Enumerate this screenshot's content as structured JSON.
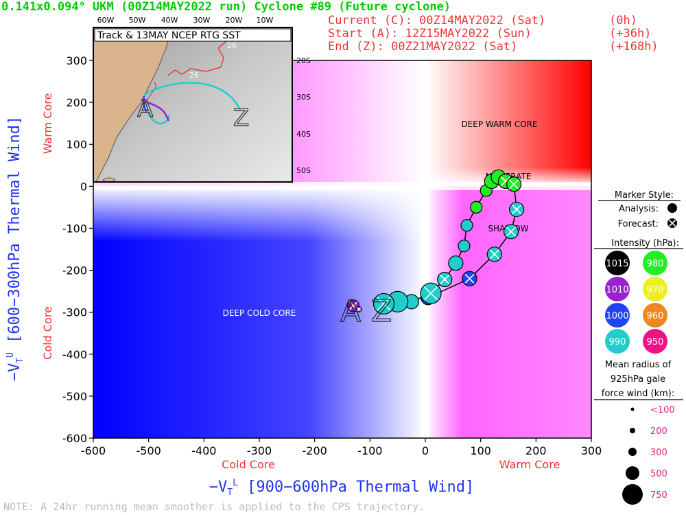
{
  "header": {
    "title": "0.141x0.094° UKM (00Z14MAY2022 run) Cyclone #89 (Future cyclone)",
    "current": "Current (C): 00Z14MAY2022 (Sat)",
    "current_hr": "(0h)",
    "start": "Start (A):   12Z15MAY2022 (Sun)",
    "start_hr": "(+36h)",
    "end": "End (Z):     00Z21MAY2022 (Sat)",
    "end_hr": "(+168h)"
  },
  "axes": {
    "xlabel": "−V",
    "xlabel_sub": "T",
    "xlabel_sup": "L",
    "xlabel_rest": " [900−600hPa Thermal Wind]",
    "ylabel": "−V",
    "ylabel_sub": "T",
    "ylabel_sup": "U",
    "ylabel_rest": " [600−300hPa Thermal Wind]",
    "x_cold": "Cold Core",
    "x_warm": "Warm Core",
    "y_warm": "Warm Core",
    "y_cold": "Cold Core"
  },
  "regions": {
    "deep_warm": "DEEP WARM CORE",
    "deep_cold": "DEEP COLD CORE",
    "moderate": "MODERATE",
    "shallow": "SHALLOW"
  },
  "markers": {
    "start": "A",
    "end": "Z"
  },
  "inset": {
    "title": "Track & 13MAY NCEP RTG SST",
    "lon_ticks": [
      "60W",
      "50W",
      "40W",
      "30W",
      "20W",
      "10W"
    ],
    "lat_ticks": [
      "20S",
      "30S",
      "40S",
      "50S"
    ],
    "sst_label_1": "26",
    "sst_label_2": "26",
    "start": "A",
    "end": "Z"
  },
  "legend": {
    "marker_style": "Marker Style:",
    "analysis": "Analysis:",
    "forecast": "Forecast:",
    "intensity": "Intensity (hPa):",
    "intensity_levels": [
      {
        "label": "1015",
        "color": "#000000",
        "text_color": "#ffffff"
      },
      {
        "label": "980",
        "color": "#22ee22",
        "text_color": "#ffffff"
      },
      {
        "label": "1010",
        "color": "#9922cc",
        "text_color": "#ffffff"
      },
      {
        "label": "970",
        "color": "#eeee22",
        "text_color": "#ffffff"
      },
      {
        "label": "1000",
        "color": "#2244ee",
        "text_color": "#ffffff"
      },
      {
        "label": "960",
        "color": "#ee8822",
        "text_color": "#ffffff"
      },
      {
        "label": "990",
        "color": "#22cccc",
        "text_color": "#ffffff"
      },
      {
        "label": "950",
        "color": "#ee1188",
        "text_color": "#ffffff"
      }
    ],
    "radius_title_1": "Mean radius of",
    "radius_title_2": "925hPa gale",
    "radius_title_3": "force wind (km):",
    "radius_sizes": [
      {
        "label": "<100",
        "r": 2.5
      },
      {
        "label": "200",
        "r": 4
      },
      {
        "label": "300",
        "r": 6
      },
      {
        "label": "500",
        "r": 10
      },
      {
        "label": "750",
        "r": 15
      }
    ]
  },
  "note": "NOTE:  A 24hr running mean smoother is applied to the CPS trajectory.",
  "chart_data": {
    "type": "scatter",
    "title": "0.141x0.094° UKM (00Z14MAY2022 run) Cyclone #89 (Future cyclone)",
    "xlabel": "−VTL [900−600hPa Thermal Wind]",
    "ylabel": "−VTU [600−300hPa Thermal Wind]",
    "xlim": [
      -600,
      300
    ],
    "ylim": [
      -600,
      300
    ],
    "xticks": [
      -600,
      -500,
      -400,
      -300,
      -200,
      -100,
      0,
      100,
      200,
      300
    ],
    "yticks": [
      -600,
      -500,
      -400,
      -300,
      -200,
      -100,
      0,
      100,
      200,
      300
    ],
    "grid": false,
    "legend_position": "right",
    "trajectory": [
      {
        "x": -130,
        "y": -285,
        "hpa": 1010,
        "size": 200,
        "type": "forecast"
      },
      {
        "x": -120,
        "y": -293,
        "hpa": 1010,
        "size": 100,
        "type": "forecast"
      },
      {
        "x": 5,
        "y": -265,
        "hpa": 1000,
        "size": 300,
        "type": "analysis"
      },
      {
        "x": 10,
        "y": -255,
        "hpa": 990,
        "size": 500,
        "type": "forecast"
      },
      {
        "x": 35,
        "y": -222,
        "hpa": 990,
        "size": 300,
        "type": "forecast"
      },
      {
        "x": 80,
        "y": -220,
        "hpa": 1000,
        "size": 300,
        "type": "forecast"
      },
      {
        "x": 55,
        "y": -183,
        "hpa": 990,
        "size": 300,
        "type": "analysis"
      },
      {
        "x": 70,
        "y": -142,
        "hpa": 990,
        "size": 200,
        "type": "analysis"
      },
      {
        "x": 125,
        "y": -162,
        "hpa": 990,
        "size": 300,
        "type": "forecast"
      },
      {
        "x": 155,
        "y": -108,
        "hpa": 990,
        "size": 300,
        "type": "forecast"
      },
      {
        "x": 75,
        "y": -93,
        "hpa": 990,
        "size": 200,
        "type": "analysis"
      },
      {
        "x": 165,
        "y": -55,
        "hpa": 990,
        "size": 300,
        "type": "forecast"
      },
      {
        "x": 92,
        "y": -50,
        "hpa": 980,
        "size": 200,
        "type": "analysis"
      },
      {
        "x": 110,
        "y": -10,
        "hpa": 980,
        "size": 200,
        "type": "analysis"
      },
      {
        "x": 120,
        "y": 12,
        "hpa": 980,
        "size": 300,
        "type": "analysis"
      },
      {
        "x": 132,
        "y": 22,
        "hpa": 980,
        "size": 300,
        "type": "analysis"
      },
      {
        "x": 145,
        "y": 12,
        "hpa": 980,
        "size": 300,
        "type": "forecast"
      },
      {
        "x": 160,
        "y": 5,
        "hpa": 980,
        "size": 300,
        "type": "forecast"
      },
      {
        "x": -25,
        "y": -275,
        "hpa": 990,
        "size": 300,
        "type": "analysis"
      },
      {
        "x": -50,
        "y": -275,
        "hpa": 990,
        "size": 500,
        "type": "analysis"
      },
      {
        "x": -75,
        "y": -280,
        "hpa": 990,
        "size": 500,
        "type": "forecast"
      }
    ]
  }
}
